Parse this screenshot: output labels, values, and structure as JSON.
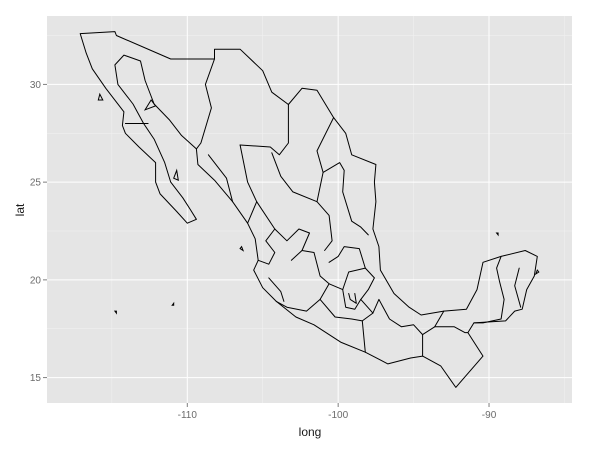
{
  "chart_data": {
    "type": "map",
    "xlabel": "long",
    "ylabel": "lat",
    "xlim": [
      -119.3,
      -84.5
    ],
    "ylim": [
      13.7,
      33.5
    ],
    "x_ticks": [
      {
        "value": -110,
        "label": "-110"
      },
      {
        "value": -100,
        "label": "-100"
      },
      {
        "value": -90,
        "label": "-90"
      }
    ],
    "y_ticks": [
      {
        "value": 15,
        "label": "15"
      },
      {
        "value": 20,
        "label": "20"
      },
      {
        "value": 25,
        "label": "25"
      },
      {
        "value": 30,
        "label": "30"
      }
    ],
    "grid": true,
    "panel_background": "#e5e5e5",
    "grid_color": "#ffffff",
    "outline_color": "#000000",
    "outline": [
      [
        -117.1,
        32.6
      ],
      [
        -114.8,
        32.7
      ],
      [
        -114.7,
        32.5
      ],
      [
        -111.1,
        31.3
      ],
      [
        -108.2,
        31.3
      ],
      [
        -108.2,
        31.8
      ],
      [
        -106.5,
        31.8
      ],
      [
        -105.0,
        30.7
      ],
      [
        -104.4,
        29.6
      ],
      [
        -103.3,
        28.97
      ],
      [
        -102.4,
        29.8
      ],
      [
        -101.4,
        29.7
      ],
      [
        -100.3,
        28.3
      ],
      [
        -99.5,
        27.5
      ],
      [
        -99.1,
        26.4
      ],
      [
        -97.5,
        25.9
      ],
      [
        -97.6,
        25.0
      ],
      [
        -97.5,
        24.0
      ],
      [
        -97.7,
        22.6
      ],
      [
        -97.3,
        21.7
      ],
      [
        -97.2,
        20.5
      ],
      [
        -96.3,
        19.3
      ],
      [
        -95.3,
        18.6
      ],
      [
        -94.5,
        18.2
      ],
      [
        -93.0,
        18.4
      ],
      [
        -91.5,
        18.5
      ],
      [
        -90.8,
        19.5
      ],
      [
        -90.4,
        20.9
      ],
      [
        -89.2,
        21.2
      ],
      [
        -87.6,
        21.5
      ],
      [
        -86.8,
        21.2
      ],
      [
        -87.0,
        20.2
      ],
      [
        -87.5,
        19.5
      ],
      [
        -87.8,
        18.5
      ],
      [
        -88.3,
        18.4
      ],
      [
        -88.9,
        17.9
      ],
      [
        -91.0,
        17.8
      ],
      [
        -91.4,
        17.3
      ],
      [
        -90.4,
        16.1
      ],
      [
        -92.2,
        14.5
      ],
      [
        -93.2,
        15.6
      ],
      [
        -94.4,
        16.1
      ],
      [
        -95.2,
        16.0
      ],
      [
        -96.7,
        15.7
      ],
      [
        -98.2,
        16.3
      ],
      [
        -99.8,
        16.8
      ],
      [
        -101.6,
        17.7
      ],
      [
        -102.8,
        18.1
      ],
      [
        -104.1,
        18.9
      ],
      [
        -105.0,
        19.6
      ],
      [
        -105.6,
        20.5
      ],
      [
        -105.3,
        21.0
      ],
      [
        -105.5,
        22.1
      ],
      [
        -106.0,
        22.9
      ],
      [
        -107.0,
        24.0
      ],
      [
        -108.2,
        25.1
      ],
      [
        -109.3,
        25.9
      ],
      [
        -109.4,
        26.7
      ],
      [
        -110.4,
        27.4
      ],
      [
        -111.2,
        28.2
      ],
      [
        -112.2,
        29.0
      ],
      [
        -112.8,
        30.2
      ],
      [
        -113.1,
        31.2
      ],
      [
        -114.2,
        31.5
      ],
      [
        -114.8,
        31.0
      ],
      [
        -114.6,
        30.0
      ],
      [
        -113.6,
        29.0
      ],
      [
        -112.9,
        28.0
      ],
      [
        -112.2,
        27.2
      ],
      [
        -111.5,
        26.0
      ],
      [
        -111.1,
        25.0
      ],
      [
        -110.3,
        24.2
      ],
      [
        -109.8,
        23.6
      ],
      [
        -109.4,
        23.1
      ],
      [
        -110.0,
        22.9
      ],
      [
        -110.7,
        23.5
      ],
      [
        -111.8,
        24.4
      ],
      [
        -112.1,
        25.0
      ],
      [
        -112.1,
        26.0
      ],
      [
        -113.2,
        26.8
      ],
      [
        -114.1,
        27.5
      ],
      [
        -114.3,
        27.9
      ],
      [
        -114.2,
        28.6
      ],
      [
        -115.4,
        29.8
      ],
      [
        -116.3,
        30.8
      ],
      [
        -116.7,
        31.6
      ],
      [
        -117.1,
        32.6
      ]
    ],
    "state_borders": [
      [
        [
          -112.6,
          28.0
        ],
        [
          -114.1,
          28.0
        ]
      ],
      [
        [
          -108.2,
          31.3
        ],
        [
          -108.8,
          30.0
        ],
        [
          -108.4,
          28.8
        ],
        [
          -109.1,
          27.0
        ],
        [
          -109.4,
          26.7
        ]
      ],
      [
        [
          -106.5,
          26.9
        ],
        [
          -104.5,
          26.8
        ],
        [
          -103.9,
          26.4
        ],
        [
          -103.3,
          27.0
        ],
        [
          -103.3,
          28.97
        ]
      ],
      [
        [
          -108.6,
          26.4
        ],
        [
          -107.4,
          25.2
        ],
        [
          -107.0,
          24.0
        ]
      ],
      [
        [
          -106.5,
          26.9
        ],
        [
          -106.0,
          25.0
        ],
        [
          -105.4,
          24.0
        ],
        [
          -106.0,
          22.9
        ]
      ],
      [
        [
          -104.4,
          26.5
        ],
        [
          -103.8,
          25.3
        ],
        [
          -103.0,
          24.5
        ],
        [
          -101.4,
          24.0
        ],
        [
          -101.0,
          25.5
        ],
        [
          -101.4,
          26.6
        ],
        [
          -100.3,
          28.3
        ]
      ],
      [
        [
          -101.0,
          25.5
        ],
        [
          -99.9,
          26.0
        ],
        [
          -99.6,
          25.6
        ],
        [
          -99.7,
          24.5
        ],
        [
          -99.1,
          23.0
        ],
        [
          -98.5,
          22.7
        ],
        [
          -98.0,
          22.3
        ]
      ],
      [
        [
          -101.4,
          24.0
        ],
        [
          -100.6,
          23.3
        ],
        [
          -100.4,
          22.0
        ],
        [
          -100.9,
          21.5
        ]
      ],
      [
        [
          -105.4,
          24.0
        ],
        [
          -104.2,
          22.6
        ],
        [
          -104.8,
          22.0
        ],
        [
          -104.2,
          21.4
        ],
        [
          -104.6,
          20.8
        ],
        [
          -105.3,
          21.0
        ]
      ],
      [
        [
          -104.2,
          22.6
        ],
        [
          -103.4,
          22.0
        ],
        [
          -102.6,
          22.6
        ],
        [
          -101.9,
          22.4
        ],
        [
          -102.4,
          21.5
        ],
        [
          -103.1,
          21.0
        ]
      ],
      [
        [
          -102.4,
          21.5
        ],
        [
          -101.6,
          21.4
        ],
        [
          -101.2,
          20.2
        ],
        [
          -100.6,
          19.8
        ],
        [
          -101.2,
          19.0
        ],
        [
          -102.1,
          18.4
        ],
        [
          -103.4,
          18.6
        ],
        [
          -104.1,
          18.9
        ]
      ],
      [
        [
          -104.6,
          20.1
        ],
        [
          -103.8,
          19.4
        ],
        [
          -103.6,
          18.9
        ]
      ],
      [
        [
          -100.6,
          19.8
        ],
        [
          -99.7,
          19.5
        ],
        [
          -99.3,
          20.4
        ],
        [
          -98.2,
          20.6
        ],
        [
          -98.6,
          21.6
        ],
        [
          -99.6,
          21.7
        ],
        [
          -100.0,
          21.2
        ],
        [
          -100.6,
          20.9
        ]
      ],
      [
        [
          -99.7,
          19.5
        ],
        [
          -99.5,
          18.6
        ],
        [
          -98.9,
          18.5
        ],
        [
          -98.5,
          19.0
        ],
        [
          -98.0,
          19.5
        ],
        [
          -97.6,
          20.1
        ],
        [
          -98.2,
          20.6
        ]
      ],
      [
        [
          -99.3,
          19.3
        ],
        [
          -99.2,
          19.0
        ],
        [
          -98.8,
          18.8
        ],
        [
          -98.9,
          19.3
        ]
      ],
      [
        [
          -101.2,
          19.0
        ],
        [
          -100.2,
          18.1
        ],
        [
          -99.1,
          18.0
        ],
        [
          -98.4,
          17.9
        ],
        [
          -98.2,
          16.3
        ]
      ],
      [
        [
          -98.4,
          17.9
        ],
        [
          -97.7,
          18.3
        ],
        [
          -97.3,
          19.0
        ],
        [
          -96.6,
          18.0
        ],
        [
          -95.8,
          17.6
        ],
        [
          -95.0,
          17.7
        ],
        [
          -94.4,
          17.2
        ],
        [
          -94.4,
          16.1
        ]
      ],
      [
        [
          -97.7,
          18.3
        ],
        [
          -98.5,
          19.0
        ]
      ],
      [
        [
          -94.4,
          17.2
        ],
        [
          -93.6,
          17.6
        ],
        [
          -93.0,
          18.4
        ]
      ],
      [
        [
          -93.6,
          17.6
        ],
        [
          -92.3,
          17.6
        ],
        [
          -91.6,
          17.3
        ],
        [
          -91.4,
          17.3
        ]
      ],
      [
        [
          -91.0,
          17.8
        ],
        [
          -90.4,
          17.8
        ],
        [
          -89.2,
          18.0
        ],
        [
          -89.0,
          19.0
        ],
        [
          -89.3,
          19.9
        ],
        [
          -89.5,
          20.6
        ],
        [
          -89.2,
          21.2
        ]
      ],
      [
        [
          -88.0,
          20.6
        ],
        [
          -88.3,
          19.7
        ],
        [
          -87.9,
          18.6
        ]
      ]
    ],
    "islands": [
      [
        [
          -115.9,
          29.2
        ],
        [
          -115.8,
          29.5
        ],
        [
          -115.6,
          29.2
        ],
        [
          -115.9,
          29.2
        ]
      ],
      [
        [
          -112.8,
          28.7
        ],
        [
          -112.4,
          29.2
        ],
        [
          -112.1,
          28.9
        ],
        [
          -112.8,
          28.7
        ]
      ],
      [
        [
          -110.9,
          25.2
        ],
        [
          -110.7,
          25.6
        ],
        [
          -110.6,
          25.1
        ],
        [
          -110.9,
          25.2
        ]
      ],
      [
        [
          -110.9,
          18.8
        ],
        [
          -110.9,
          18.7
        ],
        [
          -111.0,
          18.7
        ],
        [
          -110.9,
          18.8
        ]
      ],
      [
        [
          -114.8,
          18.4
        ],
        [
          -114.7,
          18.4
        ],
        [
          -114.7,
          18.3
        ],
        [
          -114.8,
          18.4
        ]
      ],
      [
        [
          -106.5,
          21.6
        ],
        [
          -106.4,
          21.7
        ],
        [
          -106.3,
          21.5
        ],
        [
          -106.5,
          21.6
        ]
      ],
      [
        [
          -86.9,
          20.3
        ],
        [
          -86.8,
          20.5
        ],
        [
          -86.7,
          20.4
        ],
        [
          -86.9,
          20.3
        ]
      ],
      [
        [
          -89.5,
          22.4
        ],
        [
          -89.4,
          22.4
        ],
        [
          -89.4,
          22.3
        ],
        [
          -89.5,
          22.4
        ]
      ]
    ]
  }
}
